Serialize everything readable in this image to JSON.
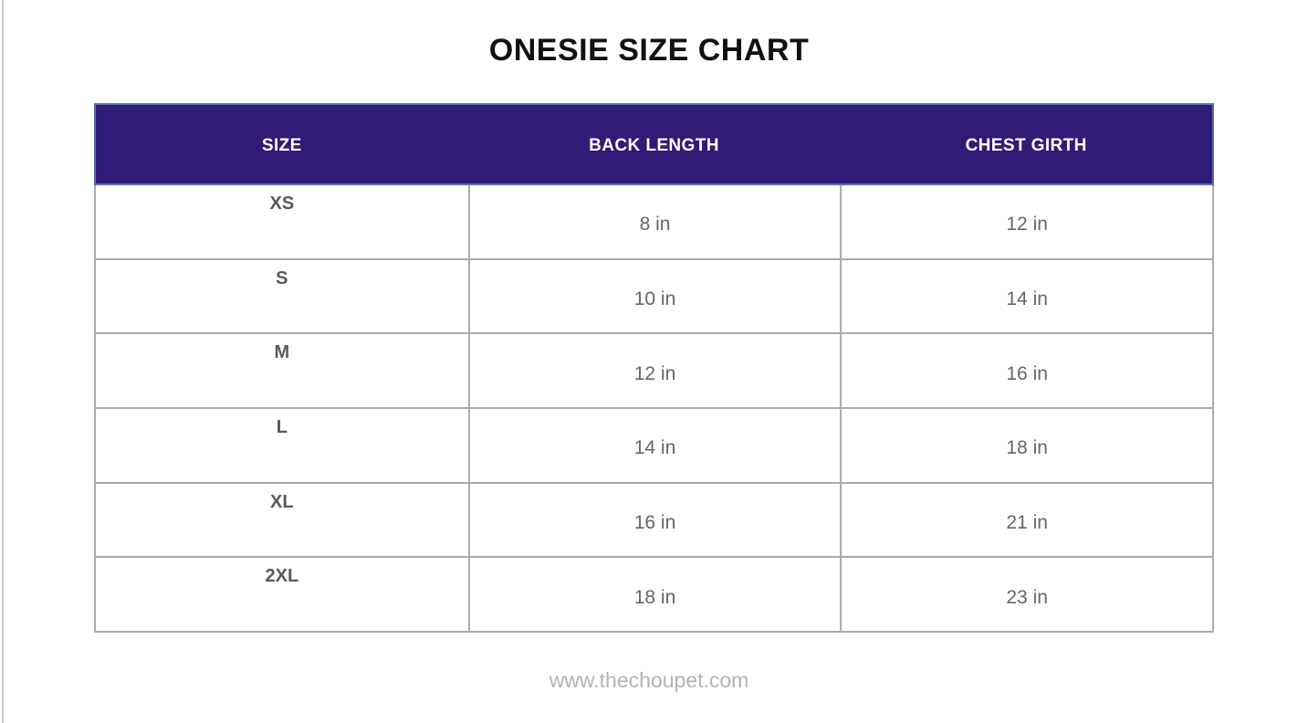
{
  "chart_data": {
    "type": "table",
    "title": "ONESIE SIZE CHART",
    "columns": [
      "SIZE",
      "BACK LENGTH",
      "CHEST GIRTH"
    ],
    "rows": [
      [
        "XS",
        "8 in",
        "12 in"
      ],
      [
        "S",
        "10 in",
        "14 in"
      ],
      [
        "M",
        "12 in",
        "16 in"
      ],
      [
        "L",
        "14 in",
        "18 in"
      ],
      [
        "XL",
        "16 in",
        "21 in"
      ],
      [
        "2XL",
        "18 in",
        "23 in"
      ]
    ],
    "footer": "www.thechoupet.com",
    "layout_hints": {
      "columns_equal_width": true,
      "header_position": "top",
      "units": "inches"
    }
  },
  "colors": {
    "header_bg": "#2F1C76",
    "header_border": "#5A6EB4",
    "header_text": "#FFFFFF",
    "body_border": "#ABABAB",
    "size_text": "#595959",
    "value_text": "#666666",
    "title_text": "#111111",
    "footer_text": "#B3B3B3",
    "edge_line": "#C9C9C9"
  }
}
